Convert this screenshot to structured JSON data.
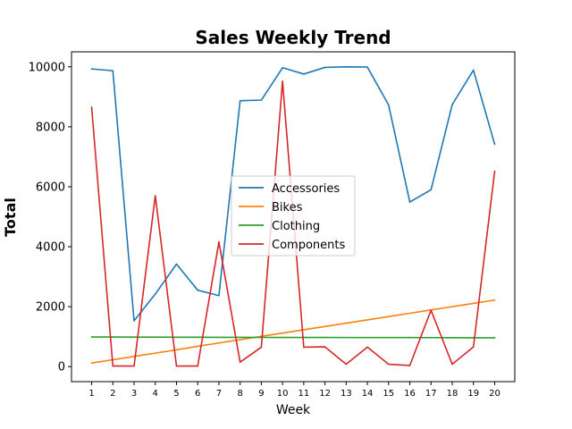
{
  "chart_data": {
    "type": "line",
    "title": "Sales Weekly Trend",
    "xlabel": "Week",
    "ylabel": "Total",
    "x": [
      1,
      2,
      3,
      4,
      5,
      6,
      7,
      8,
      9,
      10,
      11,
      12,
      13,
      14,
      15,
      16,
      17,
      18,
      19,
      20
    ],
    "xlim": [
      0.05,
      20.95
    ],
    "ylim": [
      -500,
      10500
    ],
    "yticks": [
      0,
      2000,
      4000,
      6000,
      8000,
      10000
    ],
    "ytick_labels": [
      "0",
      "2000",
      "4000",
      "6000",
      "8000",
      "10000"
    ],
    "grid": false,
    "legend_position": "center",
    "series": [
      {
        "name": "Accessories",
        "color": "#1f77b4",
        "values": [
          9930,
          9870,
          1530,
          2420,
          3420,
          2550,
          2370,
          8870,
          8890,
          9970,
          9760,
          9980,
          10000,
          9990,
          8730,
          5490,
          5900,
          8740,
          9890,
          7420
        ]
      },
      {
        "name": "Bikes",
        "color": "#ff7f0e",
        "values": [
          120,
          230,
          340,
          450,
          560,
          680,
          790,
          900,
          1010,
          1120,
          1230,
          1340,
          1450,
          1560,
          1670,
          1780,
          1890,
          2000,
          2110,
          2220
        ]
      },
      {
        "name": "Clothing",
        "color": "#2ca02c",
        "values": [
          990,
          990,
          985,
          985,
          980,
          980,
          978,
          977,
          976,
          975,
          974,
          973,
          972,
          971,
          970,
          969,
          968,
          966,
          964,
          962
        ]
      },
      {
        "name": "Components",
        "color": "#d62728",
        "values": [
          8650,
          20,
          20,
          5700,
          20,
          20,
          4160,
          150,
          650,
          9520,
          650,
          660,
          80,
          650,
          80,
          40,
          1880,
          80,
          660,
          6510
        ]
      }
    ]
  }
}
